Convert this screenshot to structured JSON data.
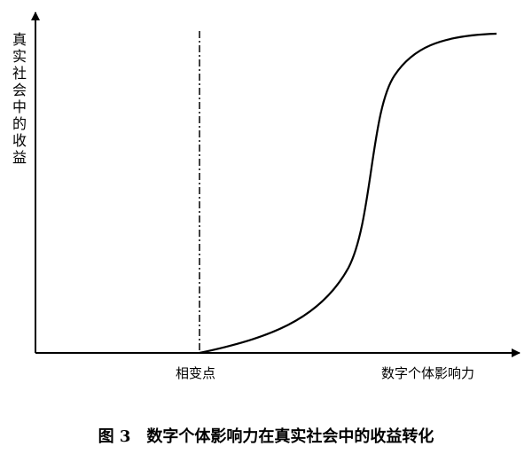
{
  "figure": {
    "y_axis_label": "真实社会中的收益",
    "x_axis_label": "数字个体影响力",
    "threshold_label": "相变点",
    "caption": "图 3　数字个体影响力在真实社会中的收益转化"
  }
}
